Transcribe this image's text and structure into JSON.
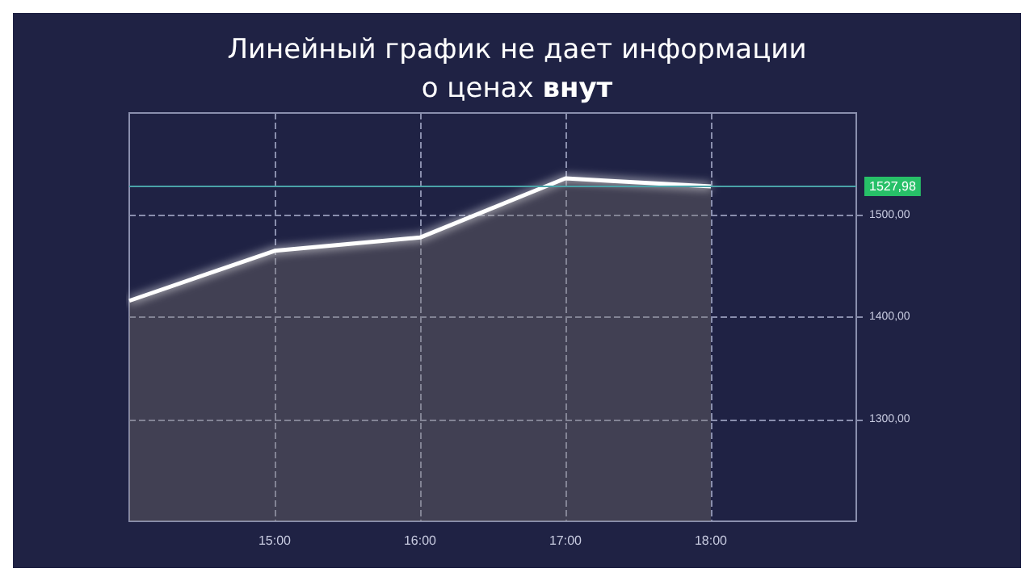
{
  "chart_data": {
    "type": "area",
    "title": "Линейный график не дает информации\nо ценах внут",
    "x": [
      14,
      15,
      16,
      17,
      18
    ],
    "series": [
      {
        "color": "#ffffff",
        "values": [
          1416,
          1465,
          1478,
          1536,
          1527.98
        ]
      }
    ],
    "xlim": [
      14,
      19
    ],
    "xticks": [
      {
        "value": 15,
        "label": "15:00"
      },
      {
        "value": 16,
        "label": "16:00"
      },
      {
        "value": 17,
        "label": "17:00"
      },
      {
        "value": 18,
        "label": "18:00"
      }
    ],
    "ylim": [
      1200,
      1600
    ],
    "yticks": [
      {
        "value": 1300,
        "label": "1300,00"
      },
      {
        "value": 1400,
        "label": "1400,00"
      },
      {
        "value": 1500,
        "label": "1500,00"
      }
    ],
    "ref_lines": [
      {
        "axis": "y",
        "value": 1527.98,
        "label": "1527,98",
        "color": "#4aa3a8"
      }
    ],
    "grid": true,
    "marker": "none",
    "line_style": "solid"
  }
}
